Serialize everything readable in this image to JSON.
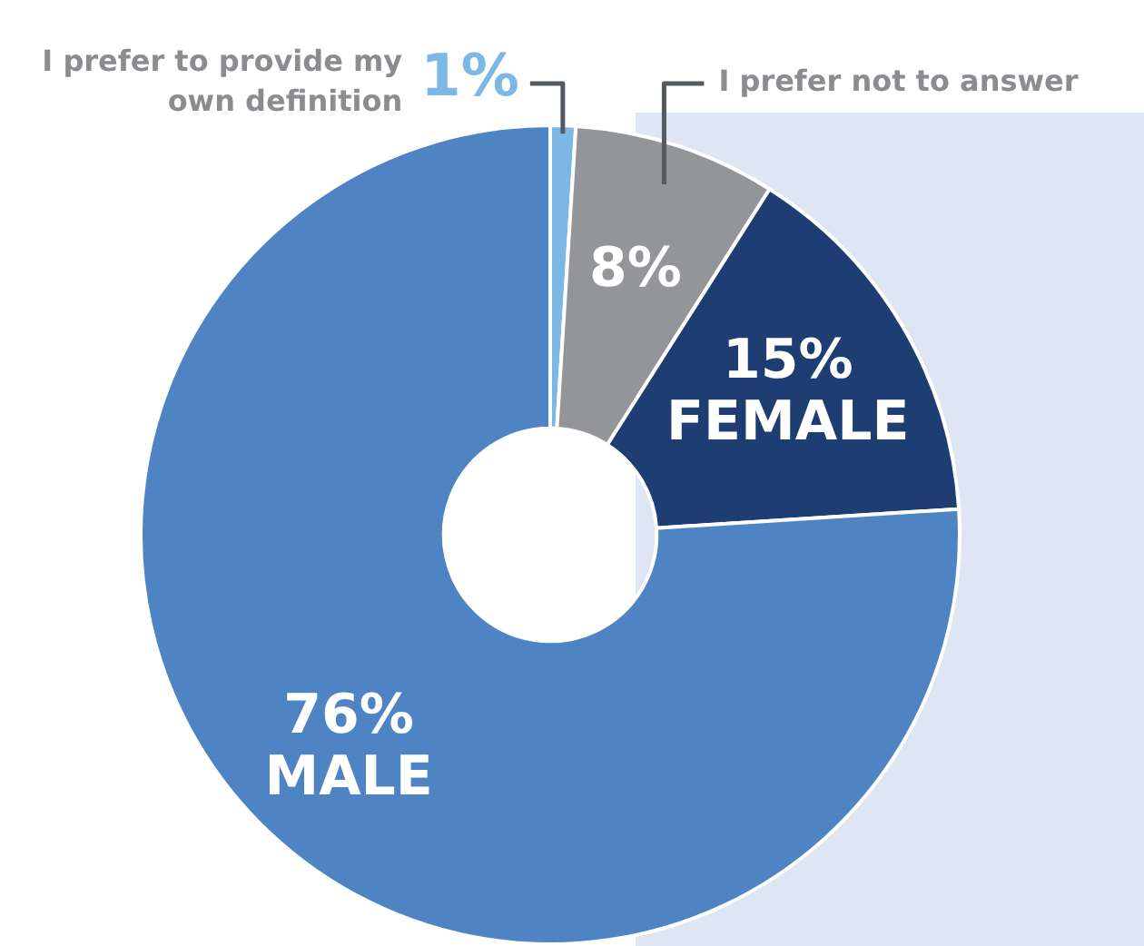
{
  "chart_data": {
    "type": "donut",
    "categories": [
      "I prefer to provide my own definition",
      "I prefer not to answer",
      "FEMALE",
      "MALE"
    ],
    "values": [
      1,
      8,
      15,
      76
    ],
    "colors": [
      "#7cb7e6",
      "#939598",
      "#1e3d73",
      "#4f84c4"
    ],
    "value_labels": [
      "1%",
      "8%",
      "15%",
      "76%"
    ],
    "legend": false
  }
}
